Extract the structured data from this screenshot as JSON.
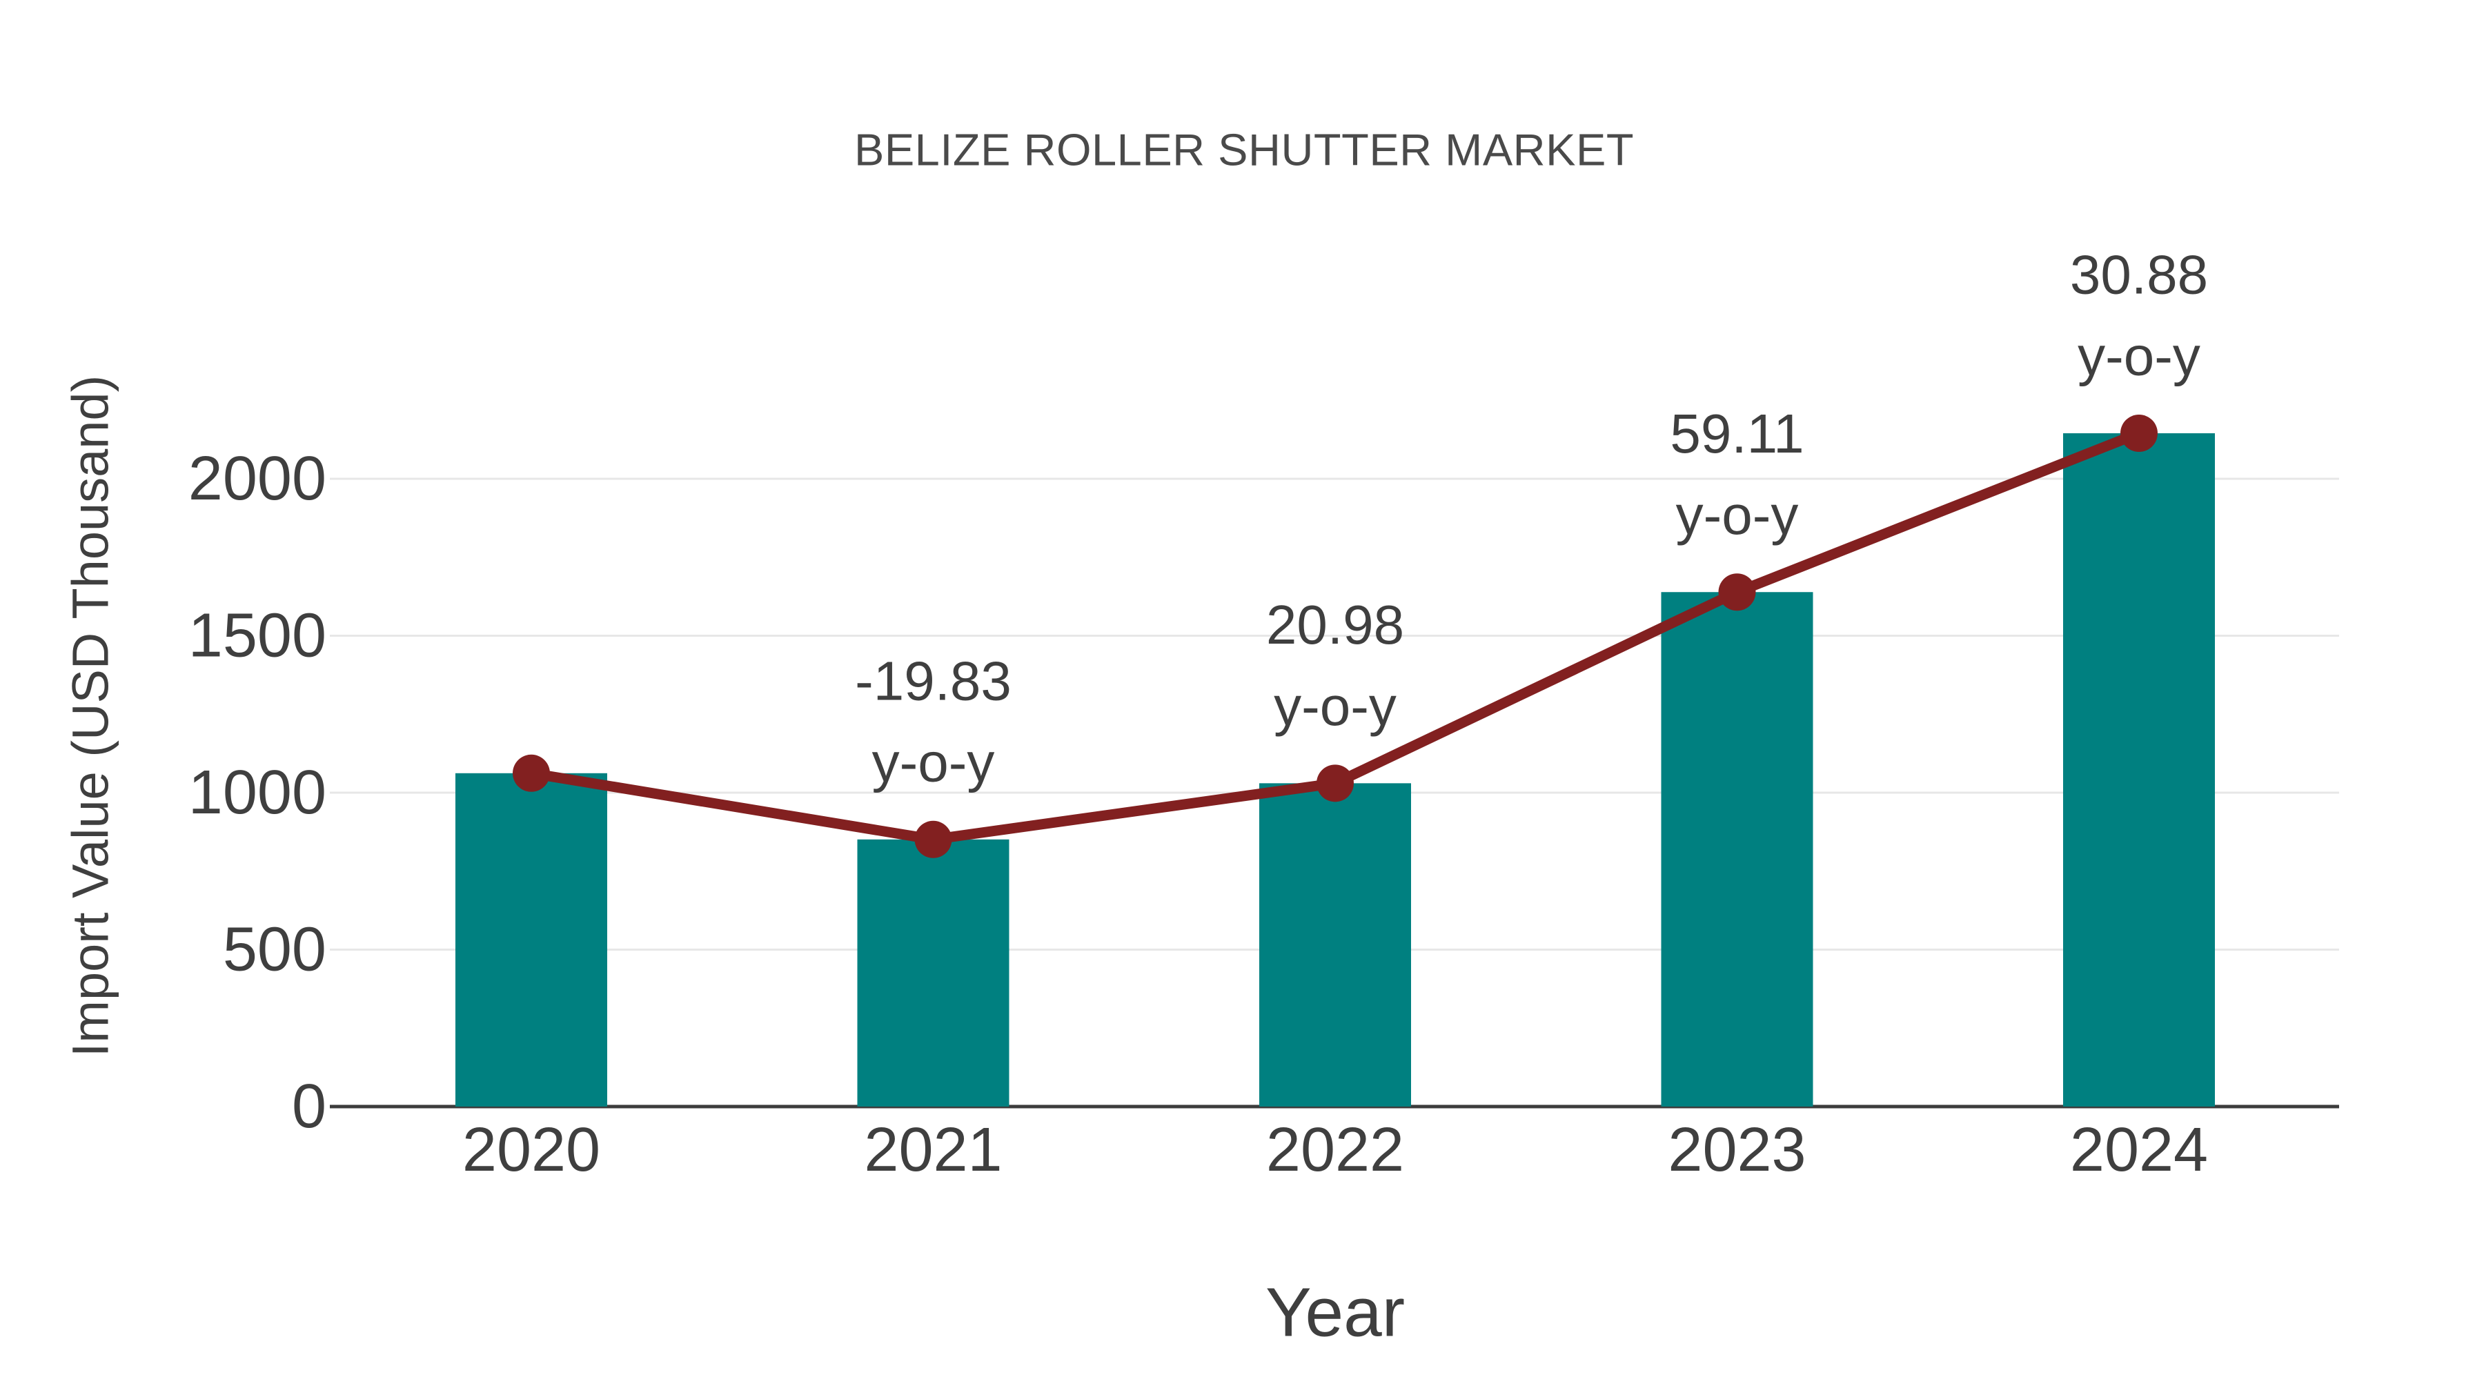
{
  "chart_data": {
    "type": "bar",
    "title": "BELIZE ROLLER SHUTTER MARKET",
    "xlabel": "Year",
    "ylabel": "Import Value (USD Thousand)",
    "categories": [
      "2020",
      "2021",
      "2022",
      "2023",
      "2024"
    ],
    "series": [
      {
        "name": "Import Value (USD Thousand)",
        "type": "bar",
        "color": "#008080",
        "values": [
          1062,
          851,
          1030,
          1639,
          2145
        ]
      },
      {
        "name": "y-o-y growth",
        "type": "line",
        "color": "#822020",
        "marker": "circle",
        "values": [
          1062,
          851,
          1030,
          1639,
          2145
        ]
      }
    ],
    "annotations": [
      {
        "category": "2021",
        "value": "-19.83",
        "suffix": "y-o-y"
      },
      {
        "category": "2022",
        "value": "20.98",
        "suffix": "y-o-y"
      },
      {
        "category": "2023",
        "value": "59.11",
        "suffix": "y-o-y"
      },
      {
        "category": "2024",
        "value": "30.88",
        "suffix": "y-o-y"
      }
    ],
    "yticks": [
      "0",
      "500",
      "1000",
      "1500",
      "2000"
    ],
    "ylim": [
      0,
      2500
    ],
    "grid": "horizontal",
    "legend": "none",
    "colors": {
      "bar": "#008080",
      "line": "#822020",
      "grid": "#e7e7e7",
      "axis_line": "#3c3c3c",
      "text": "#3f3f3f",
      "title": "#4a4a4a",
      "background": "#ffffff"
    }
  }
}
